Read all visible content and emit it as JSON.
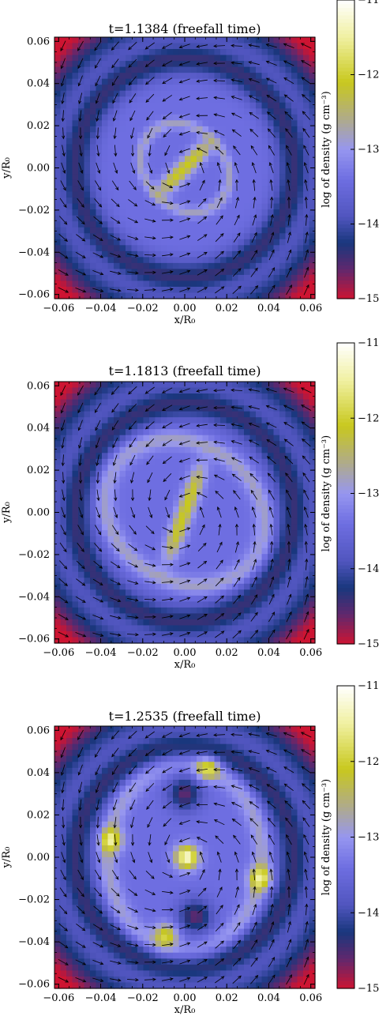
{
  "chart_data": [
    {
      "type": "heatmap",
      "title": "t=1.1384 (freefall time)",
      "xlabel": "x/R₀",
      "ylabel": "y/R₀",
      "xlim": [
        -0.062,
        0.062
      ],
      "ylim": [
        -0.062,
        0.062
      ],
      "x_ticks": [
        "−0.06",
        "−0.04",
        "−0.02",
        "0.00",
        "0.02",
        "0.04",
        "0.06"
      ],
      "y_ticks": [
        "−0.06",
        "−0.04",
        "−0.02",
        "0.00",
        "0.02",
        "0.04",
        "0.06"
      ],
      "colorbar": {
        "label": "log of density (g cm⁻³)",
        "range": [
          -15,
          -11
        ],
        "ticks": [
          "−15",
          "−14",
          "−13",
          "−12",
          "−11"
        ]
      },
      "features": {
        "ring_radius": 0.023,
        "ring_tilt_deg": 45,
        "bar_angle_deg": 45,
        "bar_half_length": 0.017,
        "clumps": []
      }
    },
    {
      "type": "heatmap",
      "title": "t=1.1813 (freefall time)",
      "xlabel": "x/R₀",
      "ylabel": "y/R₀",
      "xlim": [
        -0.062,
        0.062
      ],
      "ylim": [
        -0.062,
        0.062
      ],
      "x_ticks": [
        "−0.06",
        "−0.04",
        "−0.02",
        "0.00",
        "0.02",
        "0.04",
        "0.06"
      ],
      "y_ticks": [
        "−0.06",
        "−0.04",
        "−0.02",
        "0.00",
        "0.02",
        "0.04",
        "0.06"
      ],
      "colorbar": {
        "label": "log of density (g cm⁻³)",
        "range": [
          -15,
          -11
        ],
        "ticks": [
          "−15",
          "−14",
          "−13",
          "−12",
          "−11"
        ]
      },
      "features": {
        "ring_radius": 0.04,
        "ring_tilt_deg": 60,
        "bar_angle_deg": 70,
        "bar_half_length": 0.024,
        "clumps": []
      }
    },
    {
      "type": "heatmap",
      "title": "t=1.2535 (freefall time)",
      "xlabel": "x/R₀",
      "ylabel": "y/R₀",
      "xlim": [
        -0.062,
        0.062
      ],
      "ylim": [
        -0.062,
        0.062
      ],
      "x_ticks": [
        "−0.06",
        "−0.04",
        "−0.02",
        "0.00",
        "0.02",
        "0.04",
        "0.06"
      ],
      "y_ticks": [
        "−0.06",
        "−0.04",
        "−0.02",
        "0.00",
        "0.02",
        "0.04",
        "0.06"
      ],
      "colorbar": {
        "label": "log of density (g cm⁻³)",
        "range": [
          -15,
          -11
        ],
        "ticks": [
          "−15",
          "−14",
          "−13",
          "−12",
          "−11"
        ]
      },
      "features": {
        "ring_radius": 0.045,
        "ring_tilt_deg": 0,
        "bar_angle_deg": 0,
        "bar_half_length": 0,
        "clumps": [
          {
            "x": 0.001,
            "y": 0.0,
            "log_density": -11.2
          },
          {
            "x": 0.011,
            "y": 0.042,
            "log_density": -12.0
          },
          {
            "x": -0.035,
            "y": 0.008,
            "log_density": -12.0
          },
          {
            "x": 0.036,
            "y": -0.01,
            "log_density": -12.0
          },
          {
            "x": -0.009,
            "y": -0.037,
            "log_density": -12.0
          }
        ]
      }
    }
  ]
}
